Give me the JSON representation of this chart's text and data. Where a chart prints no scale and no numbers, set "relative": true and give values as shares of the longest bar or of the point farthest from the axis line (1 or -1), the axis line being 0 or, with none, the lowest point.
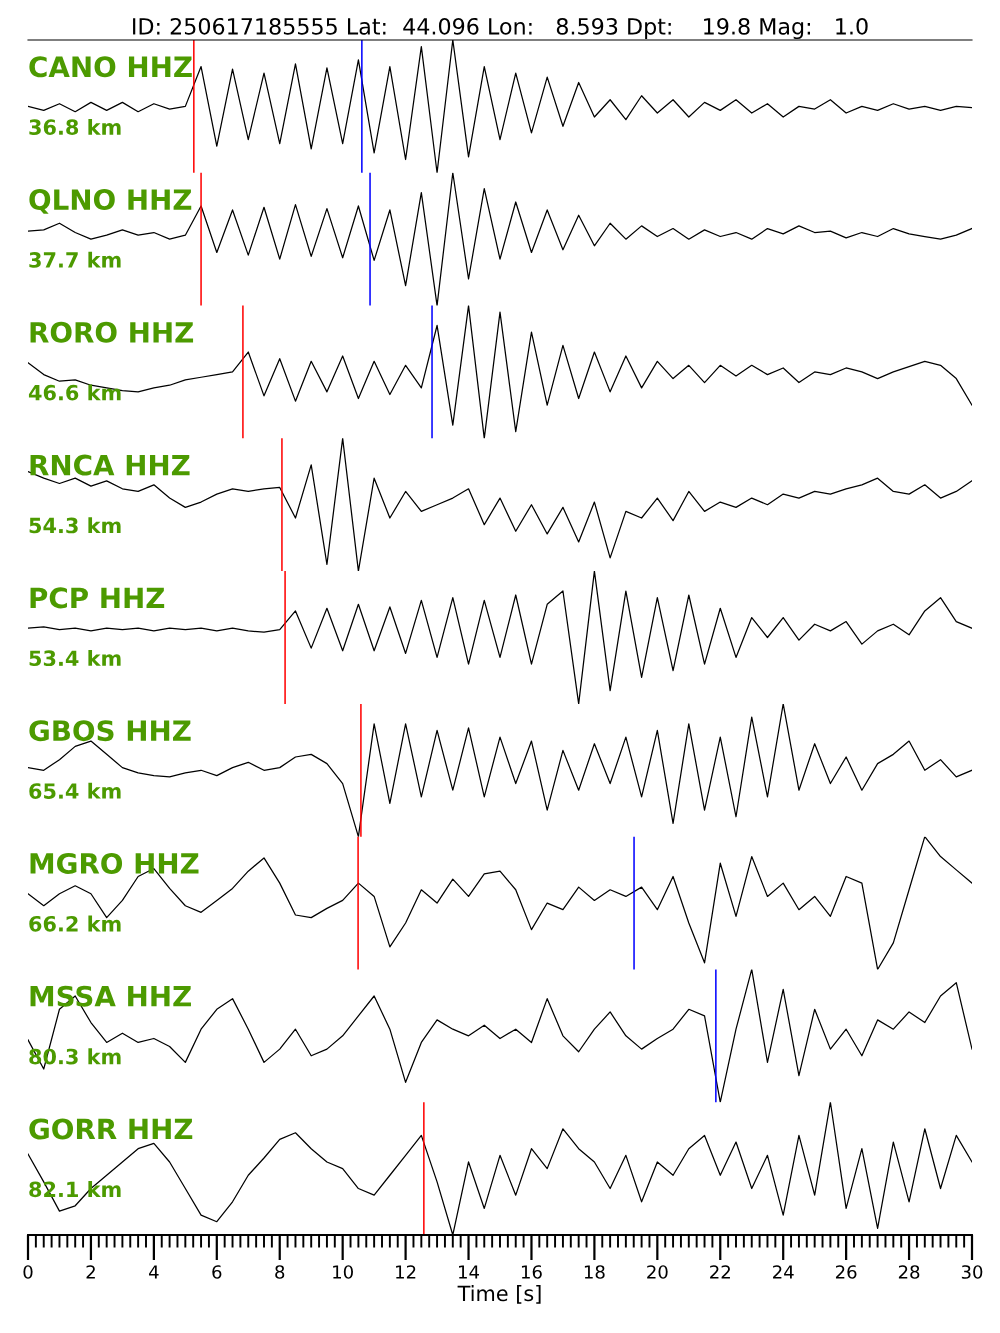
{
  "chart_data": [
    {
      "type": "line",
      "title": "ID: 250617185555 Lat:  44.096 Lon:   8.593 Dpt:    19.8 Mag:   1.0",
      "annotations": [
        "CANO HHZ",
        "36.8 km"
      ],
      "relative": true,
      "xlim": [
        0,
        30
      ],
      "tick_labels": false,
      "color": "#000000",
      "x": [
        0,
        0.5,
        1,
        1.5,
        2,
        2.5,
        3,
        3.5,
        4,
        4.5,
        5,
        5.5,
        6,
        6.5,
        7,
        7.5,
        8,
        8.5,
        9,
        9.5,
        10,
        10.5,
        11,
        11.5,
        12,
        12.5,
        13,
        13.5,
        14,
        14.5,
        15,
        15.5,
        16,
        16.5,
        17,
        17.5,
        18,
        18.5,
        19,
        19.5,
        20,
        20.5,
        21,
        21.5,
        22,
        22.5,
        23,
        23.5,
        24,
        24.5,
        25,
        25.5,
        26,
        26.5,
        27,
        27.5,
        28,
        28.5,
        29,
        29.5,
        30
      ],
      "values": [
        0.5,
        0.47,
        0.52,
        0.46,
        0.53,
        0.47,
        0.53,
        0.46,
        0.52,
        0.48,
        0.5,
        0.8,
        0.2,
        0.78,
        0.25,
        0.75,
        0.22,
        0.82,
        0.18,
        0.79,
        0.22,
        0.85,
        0.15,
        0.8,
        0.1,
        0.95,
        0.0,
        1.0,
        0.12,
        0.8,
        0.25,
        0.75,
        0.3,
        0.72,
        0.35,
        0.68,
        0.42,
        0.55,
        0.4,
        0.58,
        0.45,
        0.55,
        0.42,
        0.53,
        0.47,
        0.55,
        0.45,
        0.52,
        0.42,
        0.5,
        0.48,
        0.55,
        0.45,
        0.5,
        0.47,
        0.52,
        0.48,
        0.5,
        0.47,
        0.5,
        0.49
      ],
      "ref_lines": [
        {
          "axis": "x",
          "value": 5.27,
          "color": "#ff0000"
        },
        {
          "axis": "x",
          "value": 10.61,
          "color": "#0000ff"
        }
      ]
    },
    {
      "type": "line",
      "annotations": [
        "QLNO HHZ",
        "37.7 km"
      ],
      "relative": true,
      "xlim": [
        0,
        30
      ],
      "tick_labels": false,
      "color": "#000000",
      "x": [
        0,
        0.5,
        1,
        1.5,
        2,
        2.5,
        3,
        3.5,
        4,
        4.5,
        5,
        5.5,
        6,
        6.5,
        7,
        7.5,
        8,
        8.5,
        9,
        9.5,
        10,
        10.5,
        11,
        11.5,
        12,
        12.5,
        13,
        13.5,
        14,
        14.5,
        15,
        15.5,
        16,
        16.5,
        17,
        17.5,
        18,
        18.5,
        19,
        19.5,
        20,
        20.5,
        21,
        21.5,
        22,
        22.5,
        23,
        23.5,
        24,
        24.5,
        25,
        25.5,
        26,
        26.5,
        27,
        27.5,
        28,
        28.5,
        29,
        29.5,
        30
      ],
      "values": [
        0.56,
        0.57,
        0.62,
        0.55,
        0.5,
        0.53,
        0.57,
        0.53,
        0.55,
        0.5,
        0.53,
        0.75,
        0.4,
        0.72,
        0.38,
        0.74,
        0.35,
        0.76,
        0.37,
        0.73,
        0.36,
        0.75,
        0.34,
        0.72,
        0.15,
        0.85,
        0.0,
        1.0,
        0.2,
        0.88,
        0.35,
        0.78,
        0.4,
        0.72,
        0.42,
        0.68,
        0.45,
        0.62,
        0.5,
        0.6,
        0.52,
        0.58,
        0.5,
        0.57,
        0.52,
        0.55,
        0.5,
        0.58,
        0.54,
        0.6,
        0.55,
        0.56,
        0.51,
        0.55,
        0.52,
        0.58,
        0.54,
        0.52,
        0.5,
        0.53,
        0.58
      ],
      "ref_lines": [
        {
          "axis": "x",
          "value": 5.5,
          "color": "#ff0000"
        },
        {
          "axis": "x",
          "value": 10.87,
          "color": "#0000ff"
        }
      ]
    },
    {
      "type": "line",
      "annotations": [
        "RORO HHZ",
        "46.6 km"
      ],
      "relative": true,
      "xlim": [
        0,
        30
      ],
      "tick_labels": false,
      "color": "#000000",
      "x": [
        0,
        0.5,
        1,
        1.5,
        2,
        2.5,
        3,
        3.5,
        4,
        4.5,
        5,
        5.5,
        6,
        6.5,
        7,
        7.5,
        8,
        8.5,
        9,
        9.5,
        10,
        10.5,
        11,
        11.5,
        12,
        12.5,
        13,
        13.5,
        14,
        14.5,
        15,
        15.5,
        16,
        16.5,
        17,
        17.5,
        18,
        18.5,
        19,
        19.5,
        20,
        20.5,
        21,
        21.5,
        22,
        22.5,
        23,
        23.5,
        24,
        24.5,
        25,
        25.5,
        26,
        26.5,
        27,
        27.5,
        28,
        28.5,
        29,
        29.5,
        30
      ],
      "values": [
        0.57,
        0.48,
        0.43,
        0.44,
        0.4,
        0.38,
        0.36,
        0.35,
        0.38,
        0.4,
        0.44,
        0.46,
        0.48,
        0.5,
        0.65,
        0.32,
        0.6,
        0.28,
        0.58,
        0.35,
        0.62,
        0.3,
        0.58,
        0.33,
        0.55,
        0.38,
        0.85,
        0.1,
        1.0,
        0.0,
        0.95,
        0.05,
        0.8,
        0.25,
        0.7,
        0.3,
        0.65,
        0.35,
        0.62,
        0.38,
        0.58,
        0.45,
        0.55,
        0.42,
        0.55,
        0.47,
        0.55,
        0.48,
        0.53,
        0.42,
        0.5,
        0.48,
        0.53,
        0.5,
        0.45,
        0.5,
        0.54,
        0.58,
        0.55,
        0.45,
        0.25
      ],
      "ref_lines": [
        {
          "axis": "x",
          "value": 6.83,
          "color": "#ff0000"
        },
        {
          "axis": "x",
          "value": 12.84,
          "color": "#0000ff"
        }
      ]
    },
    {
      "type": "line",
      "annotations": [
        "RNCA HHZ",
        "54.3 km"
      ],
      "relative": true,
      "xlim": [
        0,
        30
      ],
      "tick_labels": false,
      "color": "#000000",
      "x": [
        0,
        0.5,
        1,
        1.5,
        2,
        2.5,
        3,
        3.5,
        4,
        4.5,
        5,
        5.5,
        6,
        6.5,
        7,
        7.5,
        8,
        8.5,
        9,
        9.5,
        10,
        10.5,
        11,
        11.5,
        12,
        12.5,
        13,
        13.5,
        14,
        14.5,
        15,
        15.5,
        16,
        16.5,
        17,
        17.5,
        18,
        18.5,
        19,
        19.5,
        20,
        20.5,
        21,
        21.5,
        22,
        22.5,
        23,
        23.5,
        24,
        24.5,
        25,
        25.5,
        26,
        26.5,
        27,
        27.5,
        28,
        28.5,
        29,
        29.5,
        30
      ],
      "values": [
        0.75,
        0.7,
        0.66,
        0.7,
        0.64,
        0.68,
        0.62,
        0.6,
        0.65,
        0.55,
        0.48,
        0.52,
        0.58,
        0.62,
        0.6,
        0.62,
        0.63,
        0.4,
        0.8,
        0.05,
        1.0,
        0.0,
        0.7,
        0.4,
        0.6,
        0.45,
        0.5,
        0.55,
        0.62,
        0.35,
        0.55,
        0.3,
        0.5,
        0.28,
        0.48,
        0.22,
        0.52,
        0.1,
        0.45,
        0.4,
        0.55,
        0.38,
        0.6,
        0.45,
        0.52,
        0.48,
        0.55,
        0.5,
        0.58,
        0.55,
        0.6,
        0.58,
        0.62,
        0.65,
        0.7,
        0.6,
        0.58,
        0.65,
        0.55,
        0.6,
        0.68
      ],
      "ref_lines": [
        {
          "axis": "x",
          "value": 8.07,
          "color": "#ff0000"
        }
      ]
    },
    {
      "type": "line",
      "annotations": [
        "PCP HHZ",
        "53.4 km"
      ],
      "relative": true,
      "xlim": [
        0,
        30
      ],
      "tick_labels": false,
      "color": "#000000",
      "x": [
        0,
        0.5,
        1,
        1.5,
        2,
        2.5,
        3,
        3.5,
        4,
        4.5,
        5,
        5.5,
        6,
        6.5,
        7,
        7.5,
        8,
        8.5,
        9,
        9.5,
        10,
        10.5,
        11,
        11.5,
        12,
        12.5,
        13,
        13.5,
        14,
        14.5,
        15,
        15.5,
        16,
        16.5,
        17,
        17.5,
        18,
        18.5,
        19,
        19.5,
        20,
        20.5,
        21,
        21.5,
        22,
        22.5,
        23,
        23.5,
        24,
        24.5,
        25,
        25.5,
        26,
        26.5,
        27,
        27.5,
        28,
        28.5,
        29,
        29.5,
        30
      ],
      "values": [
        0.57,
        0.58,
        0.56,
        0.57,
        0.55,
        0.57,
        0.56,
        0.57,
        0.55,
        0.57,
        0.56,
        0.57,
        0.55,
        0.57,
        0.55,
        0.54,
        0.56,
        0.7,
        0.42,
        0.72,
        0.4,
        0.75,
        0.4,
        0.73,
        0.38,
        0.78,
        0.35,
        0.8,
        0.3,
        0.78,
        0.35,
        0.82,
        0.3,
        0.75,
        0.85,
        0.0,
        1.0,
        0.1,
        0.85,
        0.2,
        0.8,
        0.25,
        0.82,
        0.3,
        0.72,
        0.35,
        0.65,
        0.5,
        0.65,
        0.48,
        0.6,
        0.55,
        0.62,
        0.45,
        0.55,
        0.6,
        0.52,
        0.7,
        0.8,
        0.62,
        0.57
      ],
      "ref_lines": [
        {
          "axis": "x",
          "value": 8.17,
          "color": "#ff0000"
        }
      ]
    },
    {
      "type": "line",
      "annotations": [
        "GBOS HHZ",
        "65.4 km"
      ],
      "relative": true,
      "xlim": [
        0,
        30
      ],
      "tick_labels": false,
      "color": "#000000",
      "x": [
        0,
        0.5,
        1,
        1.5,
        2,
        2.5,
        3,
        3.5,
        4,
        4.5,
        5,
        5.5,
        6,
        6.5,
        7,
        7.5,
        8,
        8.5,
        9,
        9.5,
        10,
        10.5,
        11,
        11.5,
        12,
        12.5,
        13,
        13.5,
        14,
        14.5,
        15,
        15.5,
        16,
        16.5,
        17,
        17.5,
        18,
        18.5,
        19,
        19.5,
        20,
        20.5,
        21,
        21.5,
        22,
        22.5,
        23,
        23.5,
        24,
        24.5,
        25,
        25.5,
        26,
        26.5,
        27,
        27.5,
        28,
        28.5,
        29,
        29.5,
        30
      ],
      "values": [
        0.52,
        0.5,
        0.58,
        0.68,
        0.72,
        0.62,
        0.52,
        0.48,
        0.46,
        0.45,
        0.48,
        0.5,
        0.46,
        0.52,
        0.56,
        0.5,
        0.52,
        0.6,
        0.62,
        0.55,
        0.4,
        0.0,
        0.85,
        0.25,
        0.85,
        0.3,
        0.8,
        0.35,
        0.82,
        0.3,
        0.75,
        0.4,
        0.72,
        0.2,
        0.65,
        0.35,
        0.7,
        0.4,
        0.75,
        0.3,
        0.8,
        0.1,
        0.85,
        0.2,
        0.75,
        0.15,
        0.9,
        0.3,
        1.0,
        0.35,
        0.7,
        0.4,
        0.6,
        0.35,
        0.55,
        0.62,
        0.72,
        0.5,
        0.58,
        0.45,
        0.5
      ],
      "ref_lines": [
        {
          "axis": "x",
          "value": 10.58,
          "color": "#ff0000"
        }
      ]
    },
    {
      "type": "line",
      "annotations": [
        "MGRO HHZ",
        "66.2 km"
      ],
      "relative": true,
      "xlim": [
        0,
        30
      ],
      "tick_labels": false,
      "color": "#000000",
      "x": [
        0,
        0.5,
        1,
        1.5,
        2,
        2.5,
        3,
        3.5,
        4,
        4.5,
        5,
        5.5,
        6,
        6.5,
        7,
        7.5,
        8,
        8.5,
        9,
        9.5,
        10,
        10.5,
        11,
        11.5,
        12,
        12.5,
        13,
        13.5,
        14,
        14.5,
        15,
        15.5,
        16,
        16.5,
        17,
        17.5,
        18,
        18.5,
        19,
        19.5,
        20,
        20.5,
        21,
        21.5,
        22,
        22.5,
        23,
        23.5,
        24,
        24.5,
        25,
        25.5,
        26,
        26.5,
        27,
        27.5,
        28,
        28.5,
        29,
        29.5,
        30
      ],
      "values": [
        0.57,
        0.48,
        0.57,
        0.63,
        0.57,
        0.39,
        0.52,
        0.7,
        0.76,
        0.61,
        0.48,
        0.43,
        0.52,
        0.61,
        0.74,
        0.84,
        0.65,
        0.41,
        0.39,
        0.46,
        0.52,
        0.65,
        0.55,
        0.17,
        0.35,
        0.6,
        0.5,
        0.68,
        0.55,
        0.72,
        0.74,
        0.6,
        0.3,
        0.5,
        0.45,
        0.62,
        0.52,
        0.6,
        0.55,
        0.62,
        0.45,
        0.7,
        0.35,
        0.05,
        0.8,
        0.4,
        0.85,
        0.55,
        0.65,
        0.45,
        0.55,
        0.4,
        0.7,
        0.65,
        0.0,
        0.2,
        0.6,
        1.0,
        0.85,
        0.75,
        0.65
      ],
      "ref_lines": [
        {
          "axis": "x",
          "value": 10.49,
          "color": "#ff0000"
        },
        {
          "axis": "x",
          "value": 19.26,
          "color": "#0000ff"
        }
      ]
    },
    {
      "type": "line",
      "annotations": [
        "MSSA HHZ",
        "80.3 km"
      ],
      "relative": true,
      "xlim": [
        0,
        30
      ],
      "tick_labels": false,
      "color": "#000000",
      "x": [
        0,
        0.5,
        1,
        1.5,
        2,
        2.5,
        3,
        3.5,
        4,
        4.5,
        5,
        5.5,
        6,
        6.5,
        7,
        7.5,
        8,
        8.5,
        9,
        9.5,
        10,
        10.5,
        11,
        11.5,
        12,
        12.5,
        13,
        13.5,
        14,
        14.5,
        15,
        15.5,
        16,
        16.5,
        17,
        17.5,
        18,
        18.5,
        19,
        19.5,
        20,
        20.5,
        21,
        21.5,
        22,
        22.5,
        23,
        23.5,
        24,
        24.5,
        25,
        25.5,
        26,
        26.5,
        27,
        27.5,
        28,
        28.5,
        29,
        29.5,
        30
      ],
      "values": [
        0.47,
        0.25,
        0.7,
        0.8,
        0.6,
        0.45,
        0.52,
        0.45,
        0.48,
        0.42,
        0.3,
        0.55,
        0.7,
        0.78,
        0.55,
        0.3,
        0.4,
        0.55,
        0.35,
        0.4,
        0.5,
        0.65,
        0.8,
        0.55,
        0.15,
        0.45,
        0.62,
        0.55,
        0.5,
        0.58,
        0.48,
        0.55,
        0.45,
        0.78,
        0.5,
        0.38,
        0.55,
        0.68,
        0.5,
        0.4,
        0.48,
        0.55,
        0.7,
        0.65,
        0.0,
        0.55,
        1.0,
        0.3,
        0.85,
        0.2,
        0.7,
        0.4,
        0.55,
        0.35,
        0.62,
        0.55,
        0.68,
        0.6,
        0.8,
        0.9,
        0.4
      ],
      "ref_lines": [
        {
          "axis": "x",
          "value": 21.86,
          "color": "#0000ff"
        }
      ]
    },
    {
      "type": "line",
      "annotations": [
        "GORR HHZ",
        "82.1 km"
      ],
      "relative": true,
      "xlim": [
        0,
        30
      ],
      "xticks": [
        0,
        2,
        4,
        6,
        8,
        10,
        12,
        14,
        16,
        18,
        20,
        22,
        24,
        26,
        28,
        30
      ],
      "xlabel": "Time [s]",
      "tick_labels": "x",
      "color": "#000000",
      "x": [
        0,
        0.5,
        1,
        1.5,
        2,
        2.5,
        3,
        3.5,
        4,
        4.5,
        5,
        5.5,
        6,
        6.5,
        7,
        7.5,
        8,
        8.5,
        9,
        9.5,
        10,
        10.5,
        11,
        11.5,
        12,
        12.5,
        13,
        13.5,
        14,
        14.5,
        15,
        15.5,
        16,
        16.5,
        17,
        17.5,
        18,
        18.5,
        19,
        19.5,
        20,
        20.5,
        21,
        21.5,
        22,
        22.5,
        23,
        23.5,
        24,
        24.5,
        25,
        25.5,
        26,
        26.5,
        27,
        27.5,
        28,
        28.5,
        29,
        29.5,
        30
      ],
      "values": [
        0.61,
        0.4,
        0.18,
        0.22,
        0.35,
        0.45,
        0.55,
        0.65,
        0.69,
        0.55,
        0.35,
        0.15,
        0.1,
        0.25,
        0.45,
        0.58,
        0.72,
        0.77,
        0.65,
        0.55,
        0.5,
        0.35,
        0.3,
        0.45,
        0.6,
        0.75,
        0.4,
        0.0,
        0.55,
        0.2,
        0.6,
        0.3,
        0.65,
        0.5,
        0.8,
        0.65,
        0.55,
        0.35,
        0.6,
        0.25,
        0.55,
        0.45,
        0.65,
        0.75,
        0.45,
        0.7,
        0.35,
        0.6,
        0.15,
        0.75,
        0.3,
        1.0,
        0.2,
        0.65,
        0.05,
        0.7,
        0.25,
        0.8,
        0.35,
        0.75,
        0.55
      ],
      "ref_lines": [
        {
          "axis": "x",
          "value": 12.58,
          "color": "#ff0000"
        }
      ]
    }
  ]
}
